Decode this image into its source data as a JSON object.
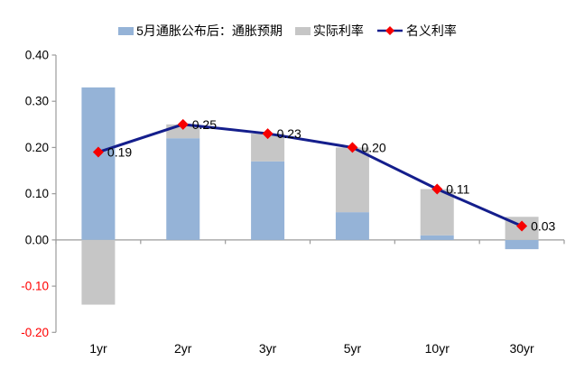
{
  "chart_data": {
    "type": "bar",
    "subtype": "stacked-bars-with-line-overlay",
    "title": "",
    "xlabel": "",
    "ylabel": "",
    "categories": [
      "1yr",
      "2yr",
      "3yr",
      "5yr",
      "10yr",
      "30yr"
    ],
    "series": [
      {
        "id": "inflation-expectation",
        "name": "5月通胀公布后：通胀预期",
        "type": "bar",
        "color": "#95B3D7",
        "values": [
          0.33,
          0.22,
          0.17,
          0.06,
          0.01,
          -0.02
        ]
      },
      {
        "id": "real-rate",
        "name": "实际利率",
        "type": "bar",
        "color": "#C6C6C6",
        "values": [
          -0.14,
          0.03,
          0.06,
          0.14,
          0.1,
          0.05
        ]
      },
      {
        "id": "nominal-rate",
        "name": "名义利率",
        "type": "line",
        "line_color": "#141E8C",
        "marker": "diamond",
        "marker_color": "#F70000",
        "values": [
          0.19,
          0.25,
          0.23,
          0.2,
          0.11,
          0.03
        ],
        "point_labels": [
          "0.19",
          "0.25",
          "0.23",
          "0.20",
          "0.11",
          "0.03"
        ]
      }
    ],
    "ylim": [
      -0.2,
      0.4
    ],
    "ytick_step": 0.1,
    "ytick_labels": [
      "0.40",
      "0.30",
      "0.20",
      "0.10",
      "0.00",
      "-0.10",
      "-0.20"
    ],
    "grid": false,
    "legend_position": "top",
    "axis_color": "#9B9B9B",
    "tick_label_color": "#000000",
    "negative_tick_label_color": "#FF0000",
    "data_label_color": "#000000",
    "background": "#FFFFFF"
  }
}
